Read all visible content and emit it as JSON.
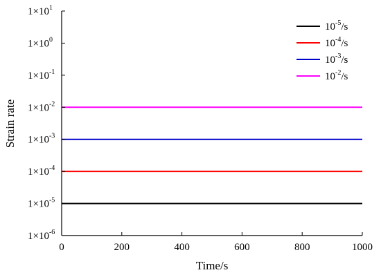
{
  "chart_data": {
    "type": "line",
    "title": "",
    "xlabel": "Time/s",
    "ylabel": "Strain rate",
    "xlim": [
      0,
      1000
    ],
    "x_ticks": [
      0,
      200,
      400,
      600,
      800,
      1000
    ],
    "y_scale": "log",
    "ylim": [
      1e-06,
      10
    ],
    "y_ticks": [
      {
        "value": 1e-06,
        "mantissa": "1×10",
        "exponent": "-6"
      },
      {
        "value": 1e-05,
        "mantissa": "1×10",
        "exponent": "-5"
      },
      {
        "value": 0.0001,
        "mantissa": "1×10",
        "exponent": "-4"
      },
      {
        "value": 0.001,
        "mantissa": "1×10",
        "exponent": "-3"
      },
      {
        "value": 0.01,
        "mantissa": "1×10",
        "exponent": "-2"
      },
      {
        "value": 0.1,
        "mantissa": "1×10",
        "exponent": "-1"
      },
      {
        "value": 1,
        "mantissa": "1×10",
        "exponent": "0"
      },
      {
        "value": 10,
        "mantissa": "1×10",
        "exponent": "1"
      }
    ],
    "grid": false,
    "legend_position": "top-right",
    "series": [
      {
        "name": "10-5/s",
        "label_base": "10",
        "label_exp": "-5",
        "label_unit": "/s",
        "color": "#000000",
        "x": [
          0,
          1000
        ],
        "y": [
          1e-05,
          1e-05
        ]
      },
      {
        "name": "10-4/s",
        "label_base": "10",
        "label_exp": "-4",
        "label_unit": "/s",
        "color": "#ff0000",
        "x": [
          0,
          1000
        ],
        "y": [
          0.0001,
          0.0001
        ]
      },
      {
        "name": "10-3/s",
        "label_base": "10",
        "label_exp": "-3",
        "label_unit": "/s",
        "color": "#0000cc",
        "x": [
          0,
          1000
        ],
        "y": [
          0.001,
          0.001
        ]
      },
      {
        "name": "10-2/s",
        "label_base": "10",
        "label_exp": "-2",
        "label_unit": "/s",
        "color": "#ff00ff",
        "x": [
          0,
          1000
        ],
        "y": [
          0.01,
          0.01
        ]
      }
    ]
  }
}
